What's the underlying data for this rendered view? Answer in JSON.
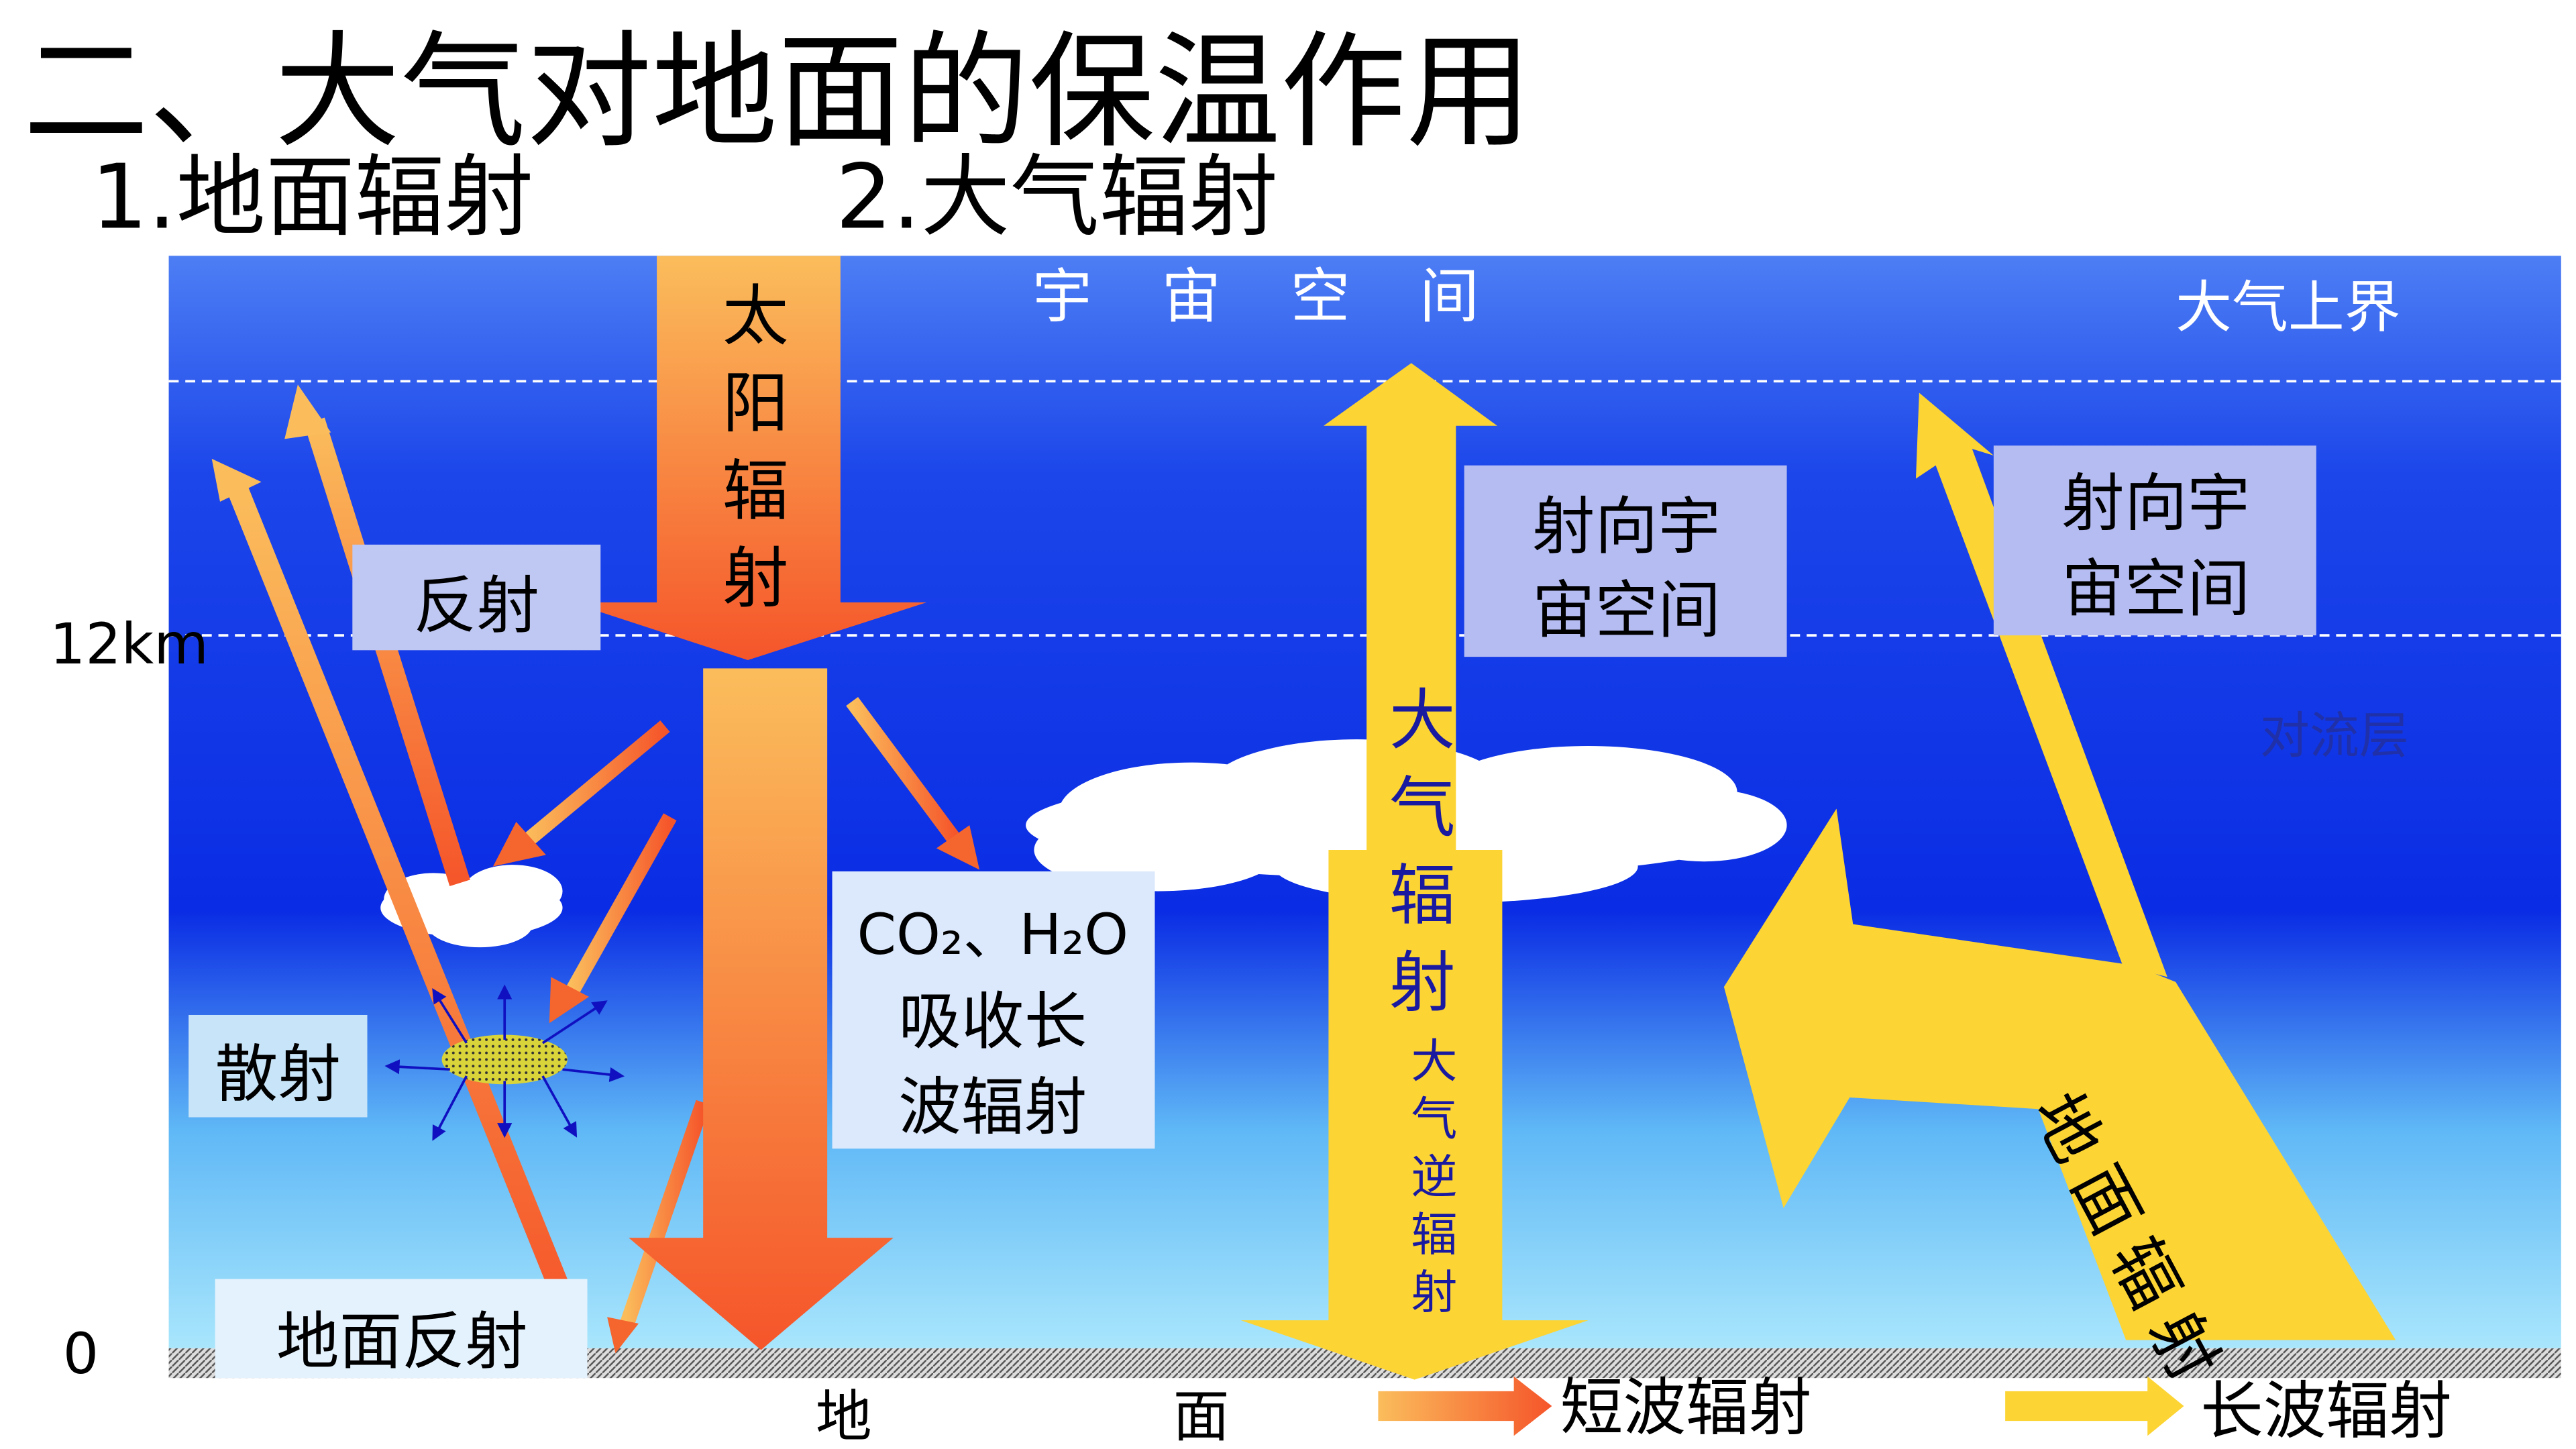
{
  "header": {
    "title": "二、大气对地面的保温作用",
    "sections": [
      "1.地面辐射",
      "2.大气辐射"
    ]
  },
  "labels": {
    "space": "宇宙空间",
    "top_of_atmosphere": "大气上界",
    "altitude_12km": "12km",
    "altitude_0": "0",
    "troposphere": "对流层",
    "ground": "地面"
  },
  "arrows": {
    "solar": "太阳辐射",
    "reflection": "反射",
    "scattering": "散射",
    "ground_reflection": "地面反射",
    "absorption": [
      "CO₂、H₂O",
      "吸收长",
      "波辐射"
    ],
    "to_space_1": [
      "射向宇",
      "宙空间"
    ],
    "to_space_2": [
      "射向宇",
      "宙空间"
    ],
    "atmospheric_radiation": "大气辐射",
    "counter_radiation": "大气逆辐射",
    "ground_radiation": "地面辐射"
  },
  "legend": {
    "shortwave": "短波辐射",
    "longwave": "长波辐射"
  }
}
